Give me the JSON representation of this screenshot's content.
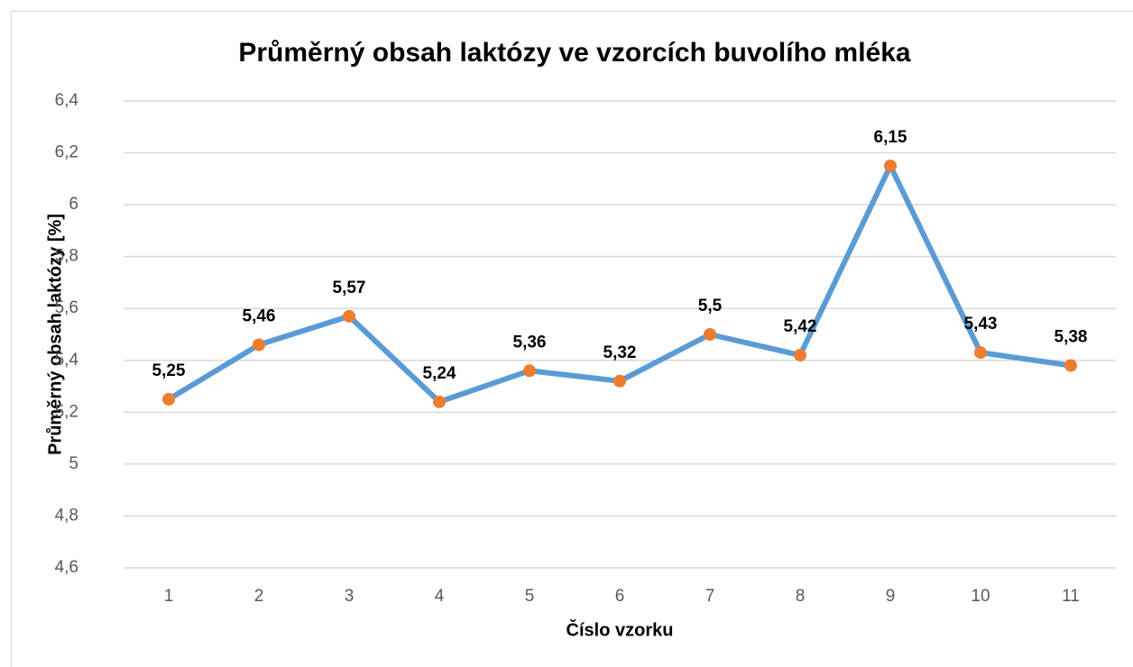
{
  "chart_data": {
    "type": "line",
    "title": "Průměrný obsah laktózy ve vzorcích buvolího mléka",
    "x_label": "Číslo vzorku",
    "y_label": "Průměrný obsah laktózy [%]",
    "categories": [
      "1",
      "2",
      "3",
      "4",
      "5",
      "6",
      "7",
      "8",
      "9",
      "10",
      "11"
    ],
    "values": [
      5.25,
      5.46,
      5.57,
      5.24,
      5.36,
      5.32,
      5.5,
      5.42,
      6.15,
      5.43,
      5.38
    ],
    "value_labels": [
      "5,25",
      "5,46",
      "5,57",
      "5,24",
      "5,36",
      "5,32",
      "5,5",
      "5,42",
      "6,15",
      "5,43",
      "5,38"
    ],
    "color": "#5b9bd5",
    "marker_color": "#ed7d31",
    "ylim": [
      4.6,
      6.4
    ],
    "yticks": [
      {
        "value": 4.6,
        "label": "4,6"
      },
      {
        "value": 4.8,
        "label": "4,8"
      },
      5,
      {
        "value": 5.2,
        "label": "5,2"
      },
      {
        "value": 5.4,
        "label": "5,4"
      },
      {
        "value": 5.6,
        "label": "5,6"
      },
      {
        "value": 5.8,
        "label": "5,8"
      },
      6,
      {
        "value": 6.2,
        "label": "6,2"
      },
      {
        "value": 6.4,
        "label": "6,4"
      }
    ],
    "grid": true
  }
}
